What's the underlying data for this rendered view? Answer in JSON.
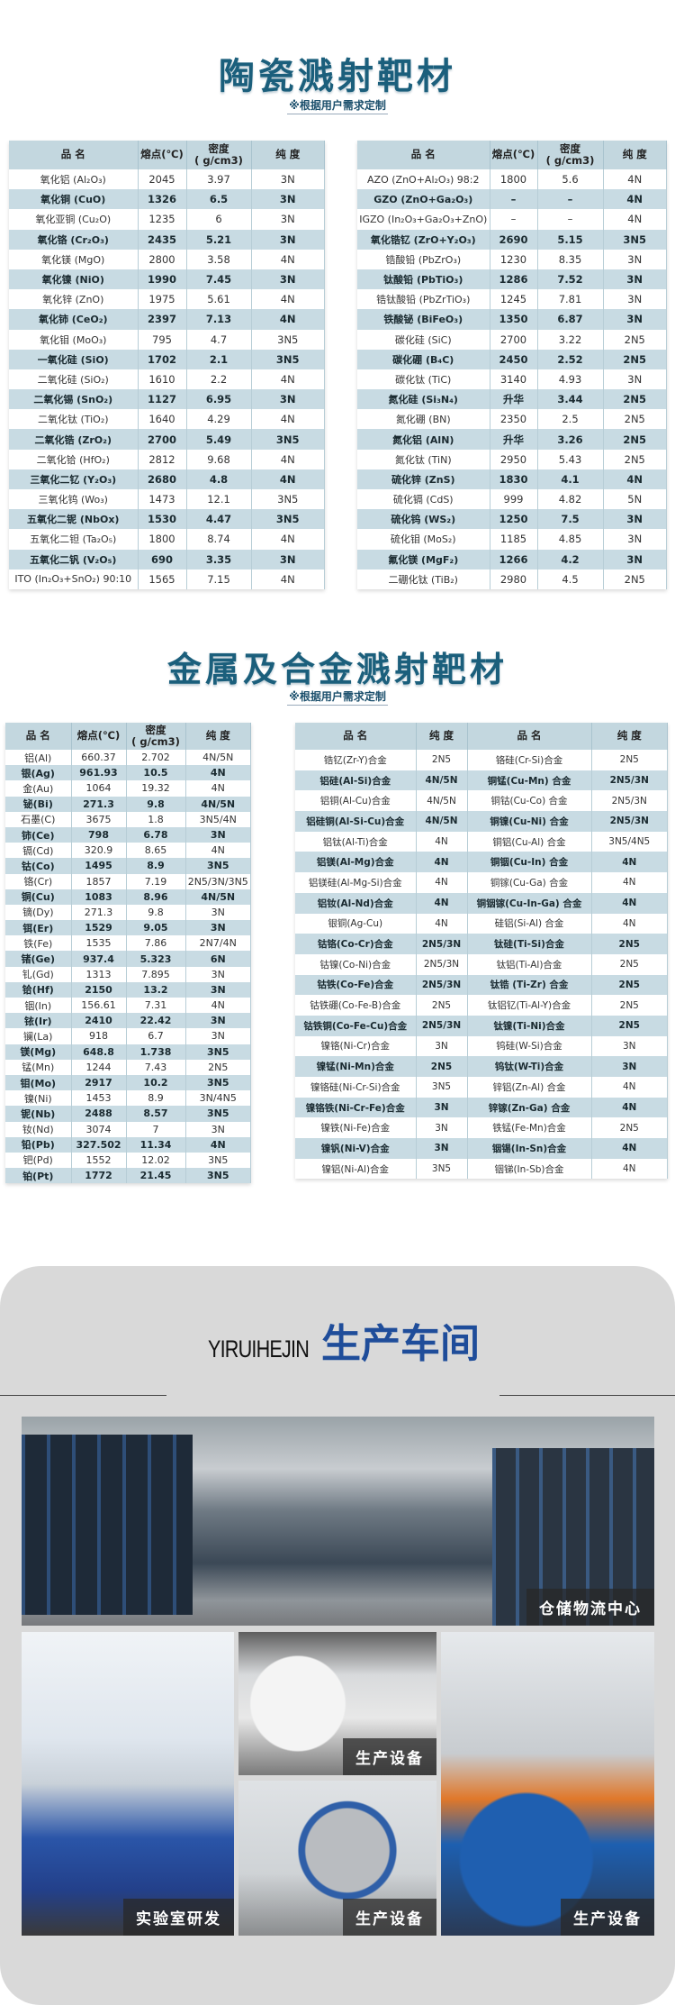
{
  "ceramic": {
    "title": "陶瓷溅射靶材",
    "subtitle": "※根据用户需求定制",
    "headers": [
      "品  名",
      "熔点(℃)",
      "密度\n( g/cm3)",
      "纯 度"
    ],
    "left": [
      [
        "氧化铝 (Al₂O₃)",
        "2045",
        "3.97",
        "3N"
      ],
      [
        "氧化铜 (CuO)",
        "1326",
        "6.5",
        "3N"
      ],
      [
        "氧化亚铜 (Cu₂O)",
        "1235",
        "6",
        "3N"
      ],
      [
        "氧化铬 (Cr₂O₃)",
        "2435",
        "5.21",
        "3N"
      ],
      [
        "氧化镁 (MgO)",
        "2800",
        "3.58",
        "4N"
      ],
      [
        "氧化镍 (NiO)",
        "1990",
        "7.45",
        "3N"
      ],
      [
        "氧化锌 (ZnO)",
        "1975",
        "5.61",
        "4N"
      ],
      [
        "氧化铈 (CeO₂)",
        "2397",
        "7.13",
        "4N"
      ],
      [
        "氧化钼 (MoO₃)",
        "795",
        "4.7",
        "3N5"
      ],
      [
        "一氧化硅 (SiO)",
        "1702",
        "2.1",
        "3N5"
      ],
      [
        "二氧化硅 (SiO₂)",
        "1610",
        "2.2",
        "4N"
      ],
      [
        "二氧化锡 (SnO₂)",
        "1127",
        "6.95",
        "3N"
      ],
      [
        "二氧化钛 (TiO₂)",
        "1640",
        "4.29",
        "4N"
      ],
      [
        "二氧化锆 (ZrO₂)",
        "2700",
        "5.49",
        "3N5"
      ],
      [
        "二氧化铪 (HfO₂)",
        "2812",
        "9.68",
        "4N"
      ],
      [
        "三氧化二钇 (Y₂O₃)",
        "2680",
        "4.8",
        "4N"
      ],
      [
        "三氧化钨 (Wo₃)",
        "1473",
        "12.1",
        "3N5"
      ],
      [
        "五氧化二铌 (NbOx)",
        "1530",
        "4.47",
        "3N5"
      ],
      [
        "五氧化二钽 (Ta₂O₅)",
        "1800",
        "8.74",
        "4N"
      ],
      [
        "五氧化二钒 (V₂O₅)",
        "690",
        "3.35",
        "3N"
      ],
      [
        "ITO (In₂O₃+SnO₂) 90:10",
        "1565",
        "7.15",
        "4N"
      ]
    ],
    "right": [
      [
        "AZO (ZnO+Al₂O₃) 98:2",
        "1800",
        "5.6",
        "4N"
      ],
      [
        "GZO (ZnO+Ga₂O₃)",
        "–",
        "–",
        "4N"
      ],
      [
        "IGZO (In₂O₃+Ga₂O₃+ZnO)",
        "–",
        "–",
        "4N"
      ],
      [
        "氧化锆钇 (ZrO+Y₂O₃)",
        "2690",
        "5.15",
        "3N5"
      ],
      [
        "锆酸铅 (PbZrO₃)",
        "1230",
        "8.35",
        "3N"
      ],
      [
        "钛酸铅 (PbTiO₃)",
        "1286",
        "7.52",
        "3N"
      ],
      [
        "锆钛酸铅 (PbZrTiO₃)",
        "1245",
        "7.81",
        "3N"
      ],
      [
        "铁酸铋 (BiFeO₃)",
        "1350",
        "6.87",
        "3N"
      ],
      [
        "碳化硅 (SiC)",
        "2700",
        "3.22",
        "2N5"
      ],
      [
        "碳化硼 (B₄C)",
        "2450",
        "2.52",
        "2N5"
      ],
      [
        "碳化钛 (TiC)",
        "3140",
        "4.93",
        "3N"
      ],
      [
        "氮化硅 (Si₃N₄)",
        "升华",
        "3.44",
        "2N5"
      ],
      [
        "氮化硼 (BN)",
        "2350",
        "2.5",
        "2N5"
      ],
      [
        "氮化铝 (AlN)",
        "升华",
        "3.26",
        "2N5"
      ],
      [
        "氮化钛 (TiN)",
        "2950",
        "5.43",
        "2N5"
      ],
      [
        "硫化锌 (ZnS)",
        "1830",
        "4.1",
        "4N"
      ],
      [
        "硫化镉 (CdS)",
        "999",
        "4.82",
        "5N"
      ],
      [
        "硫化钨 (WS₂)",
        "1250",
        "7.5",
        "3N"
      ],
      [
        "硫化钼 (MoS₂)",
        "1185",
        "4.85",
        "3N"
      ],
      [
        "氟化镁 (MgF₂)",
        "1266",
        "4.2",
        "3N"
      ],
      [
        "二硼化钛 (TiB₂)",
        "2980",
        "4.5",
        "2N5"
      ]
    ]
  },
  "metal": {
    "title": "金属及合金溅射靶材",
    "subtitle": "※根据用户需求定制",
    "headers": [
      "品 名",
      "熔点(℃)",
      "密度\n( g/cm3)",
      "纯 度"
    ],
    "rows": [
      [
        "铝(Al)",
        "660.37",
        "2.702",
        "4N/5N"
      ],
      [
        "银(Ag)",
        "961.93",
        "10.5",
        "4N"
      ],
      [
        "金(Au)",
        "1064",
        "19.32",
        "4N"
      ],
      [
        "铋(Bi)",
        "271.3",
        "9.8",
        "4N/5N"
      ],
      [
        "石墨(C)",
        "3675",
        "1.8",
        "3N5/4N"
      ],
      [
        "铈(Ce)",
        "798",
        "6.78",
        "3N"
      ],
      [
        "镉(Cd)",
        "320.9",
        "8.65",
        "4N"
      ],
      [
        "钴(Co)",
        "1495",
        "8.9",
        "3N5"
      ],
      [
        "铬(Cr)",
        "1857",
        "7.19",
        "2N5/3N/3N5"
      ],
      [
        "铜(Cu)",
        "1083",
        "8.96",
        "4N/5N"
      ],
      [
        "镝(Dy)",
        "271.3",
        "9.8",
        "3N"
      ],
      [
        "铒(Er)",
        "1529",
        "9.05",
        "3N"
      ],
      [
        "铁(Fe)",
        "1535",
        "7.86",
        "2N7/4N"
      ],
      [
        "锗(Ge)",
        "937.4",
        "5.323",
        "6N"
      ],
      [
        "钆(Gd)",
        "1313",
        "7.895",
        "3N"
      ],
      [
        "铪(Hf)",
        "2150",
        "13.2",
        "3N"
      ],
      [
        "铟(In)",
        "156.61",
        "7.31",
        "4N"
      ],
      [
        "铱(Ir)",
        "2410",
        "22.42",
        "3N"
      ],
      [
        "镧(La)",
        "918",
        "6.7",
        "3N"
      ],
      [
        "镁(Mg)",
        "648.8",
        "1.738",
        "3N5"
      ],
      [
        "锰(Mn)",
        "1244",
        "7.43",
        "2N5"
      ],
      [
        "钼(Mo)",
        "2917",
        "10.2",
        "3N5"
      ],
      [
        "镍(Ni)",
        "1453",
        "8.9",
        "3N/4N5"
      ],
      [
        "铌(Nb)",
        "2488",
        "8.57",
        "3N5"
      ],
      [
        "钕(Nd)",
        "3074",
        "7",
        "3N"
      ],
      [
        "铅(Pb)",
        "327.502",
        "11.34",
        "4N"
      ],
      [
        "钯(Pd)",
        "1552",
        "12.02",
        "3N5"
      ],
      [
        "铂(Pt)",
        "1772",
        "21.45",
        "3N5"
      ]
    ]
  },
  "alloy": {
    "headers": [
      "品 名",
      "纯 度",
      "品 名",
      "纯 度"
    ],
    "rows": [
      [
        "锆钇(Zr-Y)合金",
        "2N5",
        "铬硅(Cr-Si)合金",
        "2N5"
      ],
      [
        "铝硅(Al-Si)合金",
        "4N/5N",
        "铜锰(Cu-Mn) 合金",
        "2N5/3N"
      ],
      [
        "铝铜(Al-Cu)合金",
        "4N/5N",
        "铜钴(Cu-Co) 合金",
        "2N5/3N"
      ],
      [
        "铝硅铜(Al-Si-Cu)合金",
        "4N/5N",
        "铜镍(Cu-Ni) 合金",
        "2N5/3N"
      ],
      [
        "铝钛(Al-Ti)合金",
        "4N",
        "铜铝(Cu-Al) 合金",
        "3N5/4N5"
      ],
      [
        "铝镁(Al-Mg)合金",
        "4N",
        "铜铟(Cu-In) 合金",
        "4N"
      ],
      [
        "铝镁硅(Al-Mg-Si)合金",
        "4N",
        "铜镓(Cu-Ga) 合金",
        "4N"
      ],
      [
        "铝钕(Al-Nd)合金",
        "4N",
        "铜铟镓(Cu-In-Ga) 合金",
        "4N"
      ],
      [
        "银铜(Ag-Cu)",
        "4N",
        "硅铝(Si-Al) 合金",
        "4N"
      ],
      [
        "钴铬(Co-Cr)合金",
        "2N5/3N",
        "钛硅(Ti-Si)合金",
        "2N5"
      ],
      [
        "钴镍(Co-Ni)合金",
        "2N5/3N",
        "钛铝(Ti-Al)合金",
        "2N5"
      ],
      [
        "钴铁(Co-Fe)合金",
        "2N5/3N",
        "钛锆 (Ti-Zr) 合金",
        "2N5"
      ],
      [
        "钴铁硼(Co-Fe-B)合金",
        "2N5",
        "钛铝钇(Ti-Al-Y)合金",
        "2N5"
      ],
      [
        "钴铁铜(Co-Fe-Cu)合金",
        "2N5/3N",
        "钛镍(Ti-Ni)合金",
        "2N5"
      ],
      [
        "镍铬(Ni-Cr)合金",
        "3N",
        "钨硅(W-Si)合金",
        "3N"
      ],
      [
        "镍锰(Ni-Mn)合金",
        "2N5",
        "钨钛(W-Ti)合金",
        "3N"
      ],
      [
        "镍铬硅(Ni-Cr-Si)合金",
        "3N5",
        "锌铝(Zn-Al) 合金",
        "4N"
      ],
      [
        "镍铬铁(Ni-Cr-Fe)合金",
        "3N",
        "锌镓(Zn-Ga) 合金",
        "4N"
      ],
      [
        "镍铁(Ni-Fe)合金",
        "3N",
        "铁锰(Fe-Mn)合金",
        "2N5"
      ],
      [
        "镍钒(Ni-V)合金",
        "3N",
        "铟锡(In-Sn)合金",
        "4N"
      ],
      [
        "镍铝(Ni-Al)合金",
        "3N5",
        "铟锑(In-Sb)合金",
        "4N"
      ]
    ]
  },
  "workshop": {
    "brand": "YIRUIHEJIN",
    "title": "生产车间",
    "accent": "#1f4d9a",
    "photos": [
      "仓储物流中心",
      "实验室研发",
      "生产设备",
      "生产设备",
      "生产设备"
    ]
  }
}
